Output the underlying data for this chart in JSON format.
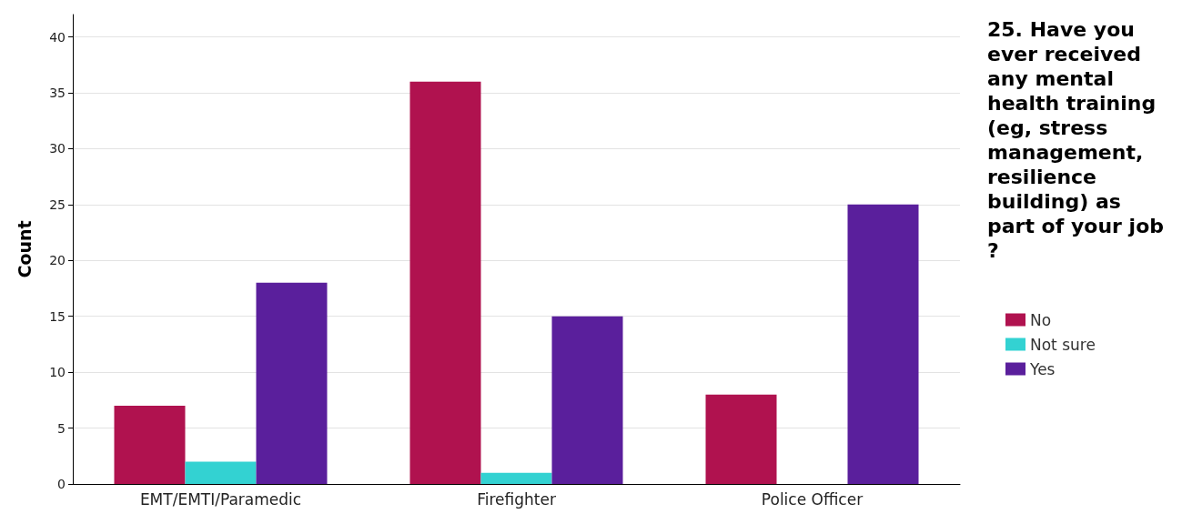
{
  "chart_data": {
    "type": "bar",
    "ylabel": "Count",
    "legend_title": "25. Have you ever received any mental health training (eg, stress management, resilience building) as part of your job?",
    "categories": [
      "EMT/EMTI/Paramedic",
      "Firefighter",
      "Police Officer"
    ],
    "series": [
      {
        "name": "No",
        "color": "#b0124f",
        "values": [
          7,
          36,
          8
        ]
      },
      {
        "name": "Not sure",
        "color": "#33d2d2",
        "values": [
          2,
          1,
          0
        ]
      },
      {
        "name": "Yes",
        "color": "#5a1f9c",
        "values": [
          18,
          15,
          25
        ]
      }
    ],
    "ylim": [
      0,
      42
    ],
    "yticks": [
      0,
      5,
      10,
      15,
      20,
      25,
      30,
      35,
      40
    ],
    "grid": "y",
    "legend": "right"
  }
}
